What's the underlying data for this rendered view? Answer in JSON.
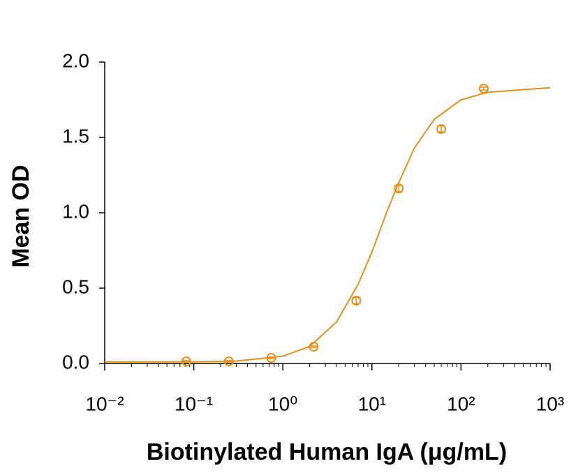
{
  "chart_data": {
    "type": "scatter",
    "x_label": "Biotinylated Human IgA (μg/mL)",
    "y_label": "Mean OD",
    "x": [
      0.0823,
      0.247,
      0.741,
      2.22,
      6.67,
      20,
      60,
      180
    ],
    "values": [
      0.014,
      0.014,
      0.037,
      0.111,
      0.417,
      1.162,
      1.556,
      1.824
    ],
    "errors": [
      0.005,
      0.005,
      0.005,
      0.005,
      0.02,
      0.02,
      0.02,
      0.01
    ],
    "fit": {
      "x": [
        0.01,
        0.1,
        0.3,
        1,
        2,
        4,
        7,
        10,
        15,
        20,
        30,
        50,
        100,
        200,
        1000
      ],
      "y": [
        0.01,
        0.011,
        0.016,
        0.048,
        0.113,
        0.275,
        0.525,
        0.74,
        1.02,
        1.2,
        1.43,
        1.62,
        1.75,
        1.8,
        1.83
      ]
    },
    "color": "#e3901f",
    "x_log": true,
    "minor_ticks": true,
    "xlim": [
      0.01,
      1000
    ],
    "xticks": [
      {
        "value": 0.01,
        "label": "10⁻²"
      },
      {
        "value": 0.1,
        "label": "10⁻¹"
      },
      {
        "value": 1,
        "label": "10⁰"
      },
      {
        "value": 10,
        "label": "10¹"
      },
      {
        "value": 100,
        "label": "10²"
      },
      {
        "value": 1000,
        "label": "10³"
      }
    ],
    "ylim": [
      0,
      2
    ],
    "yticks": [
      {
        "value": 0,
        "label": "0.0"
      },
      0.5,
      {
        "value": 1,
        "label": "1.0"
      },
      1.5,
      {
        "value": 2,
        "label": "2.0"
      }
    ]
  }
}
